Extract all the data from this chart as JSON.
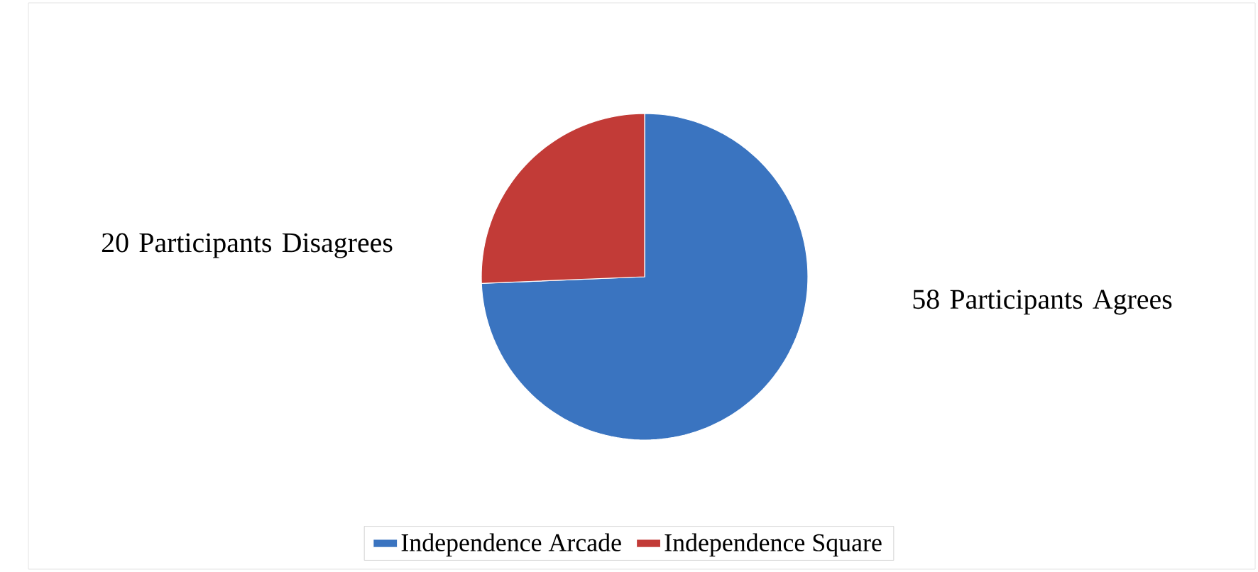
{
  "chart_data": {
    "type": "pie",
    "categories": [
      "Independence Arcade",
      "Independence  Square"
    ],
    "values": [
      58,
      20
    ],
    "colors": [
      "#3a74c0",
      "#c23b37"
    ],
    "value_labels": [
      "58 Participants Agrees",
      "20 Participants Disagrees"
    ],
    "legend": "bottom"
  }
}
